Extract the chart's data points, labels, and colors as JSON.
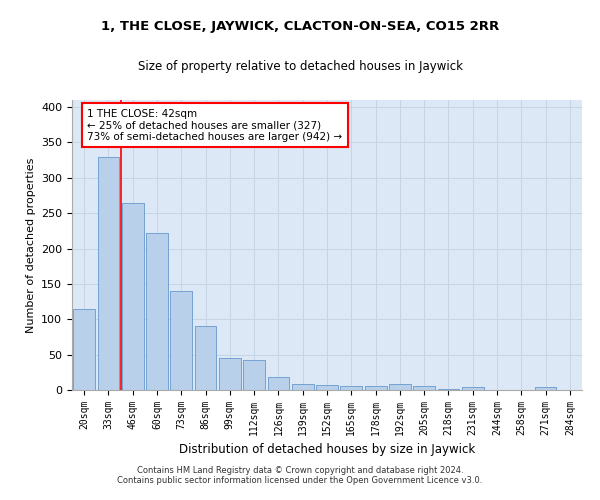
{
  "title": "1, THE CLOSE, JAYWICK, CLACTON-ON-SEA, CO15 2RR",
  "subtitle": "Size of property relative to detached houses in Jaywick",
  "xlabel": "Distribution of detached houses by size in Jaywick",
  "ylabel": "Number of detached properties",
  "footer_line1": "Contains HM Land Registry data © Crown copyright and database right 2024.",
  "footer_line2": "Contains public sector information licensed under the Open Government Licence v3.0.",
  "bar_labels": [
    "20sqm",
    "33sqm",
    "46sqm",
    "60sqm",
    "73sqm",
    "86sqm",
    "99sqm",
    "112sqm",
    "126sqm",
    "139sqm",
    "152sqm",
    "165sqm",
    "178sqm",
    "192sqm",
    "205sqm",
    "218sqm",
    "231sqm",
    "244sqm",
    "258sqm",
    "271sqm",
    "284sqm"
  ],
  "bar_values": [
    115,
    330,
    265,
    222,
    140,
    90,
    45,
    42,
    18,
    9,
    7,
    5,
    6,
    8,
    5,
    2,
    4,
    0,
    0,
    4,
    0
  ],
  "bar_color": "#b8d0ea",
  "bar_edge_color": "#6699cc",
  "grid_color": "#c5d5e5",
  "bg_color": "#dce8f5",
  "red_line_x": 1.5,
  "annotation_text": "1 THE CLOSE: 42sqm\n← 25% of detached houses are smaller (327)\n73% of semi-detached houses are larger (942) →",
  "annotation_box_color": "white",
  "annotation_box_edge": "red",
  "ylim": [
    0,
    410
  ],
  "yticks": [
    0,
    50,
    100,
    150,
    200,
    250,
    300,
    350,
    400
  ]
}
